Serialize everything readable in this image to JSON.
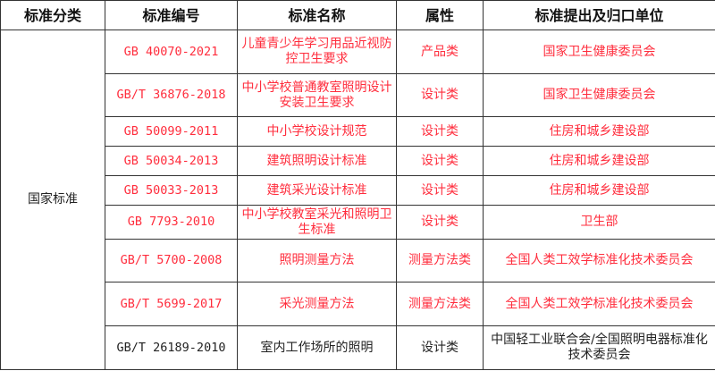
{
  "headers": [
    "标准分类",
    "标准编号",
    "标准名称",
    "属性",
    "标准提出及归口单位"
  ],
  "category": "国家标准",
  "rows": [
    {
      "code": "GB 40070-2021",
      "name": "儿童青少年学习用品近视防控卫生要求",
      "type": "产品类",
      "org": "国家卫生健康委员会"
    },
    {
      "code": "GB/T 36876-2018",
      "name": "中小学校普通教室照明设计安装卫生要求",
      "type": "设计类",
      "org": "国家卫生健康委员会"
    },
    {
      "code": "GB 50099-2011",
      "name": "中小学校设计规范",
      "type": "设计类",
      "org": "住房和城乡建设部"
    },
    {
      "code": "GB 50034-2013",
      "name": "建筑照明设计标准",
      "type": "设计类",
      "org": "住房和城乡建设部"
    },
    {
      "code": "GB 50033-2013",
      "name": "建筑采光设计标准",
      "type": "设计类",
      "org": "住房和城乡建设部"
    },
    {
      "code": "GB 7793-2010",
      "name": "中小学校教室采光和照明卫生标准",
      "type": "设计类",
      "org": "卫生部"
    },
    {
      "code": "GB/T 5700-2008",
      "name": "照明测量方法",
      "type": "测量方法类",
      "org": "全国人类工效学标准化技术委员会"
    },
    {
      "code": "GB/T 5699-2017",
      "name": "采光测量方法",
      "type": "测量方法类",
      "org": "全国人类工效学标准化技术委员会"
    },
    {
      "code": "GB/T 26189-2010",
      "name": "室内工作场所的照明",
      "type": "设计类",
      "org": "中国轻工业联合会/全国照明电器标准化技术委员会"
    }
  ],
  "colors": {
    "highlight": "#ff2d3d",
    "normal": "#222222"
  }
}
